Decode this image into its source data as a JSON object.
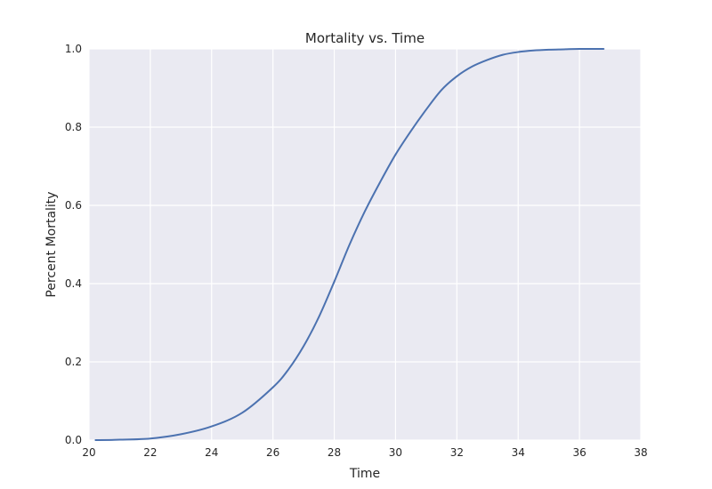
{
  "chart_data": {
    "type": "line",
    "title": "Mortality vs. Time",
    "xlabel": "Time",
    "ylabel": "Percent Mortality",
    "xlim": [
      20,
      38
    ],
    "ylim": [
      0.0,
      1.0
    ],
    "x_ticks": [
      "20",
      "22",
      "24",
      "26",
      "28",
      "30",
      "32",
      "34",
      "36",
      "38"
    ],
    "y_ticks": [
      "0.0",
      "0.2",
      "0.4",
      "0.6",
      "0.8",
      "1.0"
    ],
    "grid": true,
    "legend": "none",
    "colors": {
      "line": "#4c72b0",
      "plot_bg": "#eaeaf2",
      "grid": "#ffffff"
    },
    "series": [
      {
        "x": [
          20.2,
          21,
          22,
          23,
          24,
          25,
          26,
          26.5,
          27,
          27.5,
          28,
          28.5,
          29,
          29.5,
          30,
          30.5,
          31,
          31.5,
          32,
          32.5,
          33,
          33.5,
          34,
          34.5,
          35,
          35.5,
          36,
          36.8
        ],
        "y": [
          0.0,
          0.001,
          0.004,
          0.015,
          0.035,
          0.07,
          0.135,
          0.18,
          0.24,
          0.315,
          0.405,
          0.5,
          0.585,
          0.66,
          0.73,
          0.79,
          0.845,
          0.895,
          0.93,
          0.955,
          0.972,
          0.985,
          0.992,
          0.996,
          0.998,
          0.999,
          1.0,
          1.0
        ]
      }
    ]
  }
}
